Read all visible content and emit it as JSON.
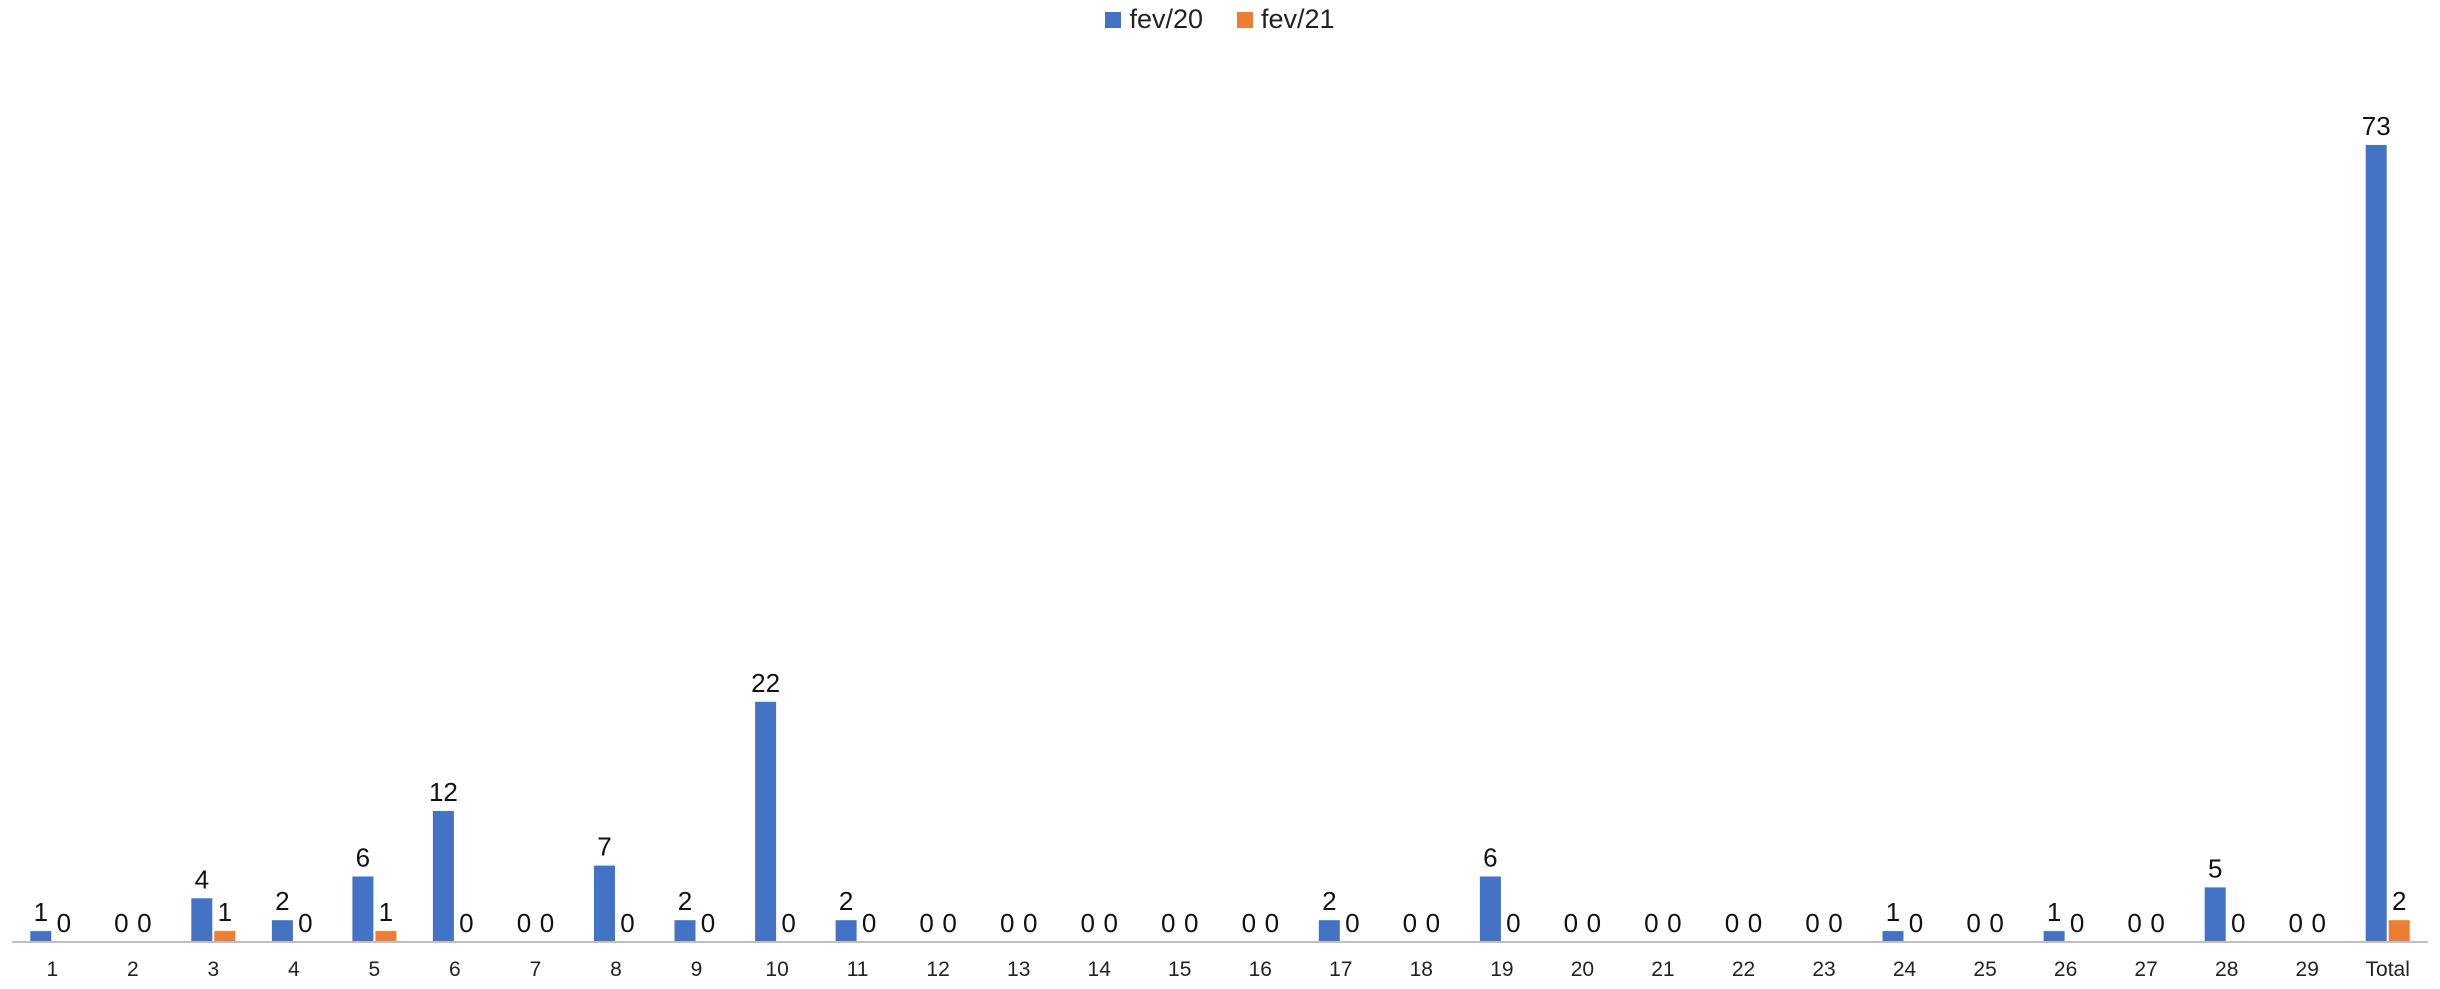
{
  "chart_data": {
    "type": "bar",
    "categories": [
      "1",
      "2",
      "3",
      "4",
      "5",
      "6",
      "7",
      "8",
      "9",
      "10",
      "11",
      "12",
      "13",
      "14",
      "15",
      "16",
      "17",
      "18",
      "19",
      "20",
      "21",
      "22",
      "23",
      "24",
      "25",
      "26",
      "27",
      "28",
      "29",
      "Total"
    ],
    "series": [
      {
        "name": "fev/20",
        "color": "#4472C4",
        "values": [
          1,
          0,
          4,
          2,
          6,
          12,
          0,
          7,
          2,
          22,
          2,
          0,
          0,
          0,
          0,
          0,
          2,
          0,
          6,
          0,
          0,
          0,
          0,
          1,
          0,
          1,
          0,
          5,
          0,
          73
        ]
      },
      {
        "name": "fev/21",
        "color": "#ED7D31",
        "values": [
          0,
          0,
          1,
          0,
          1,
          0,
          0,
          0,
          0,
          0,
          0,
          0,
          0,
          0,
          0,
          0,
          0,
          0,
          0,
          0,
          0,
          0,
          0,
          0,
          0,
          0,
          0,
          0,
          0,
          2
        ]
      }
    ],
    "title": "",
    "xlabel": "",
    "ylabel": "",
    "ylim": [
      0,
      73
    ],
    "grid": false,
    "legend": "top-center",
    "data_labels": true
  }
}
